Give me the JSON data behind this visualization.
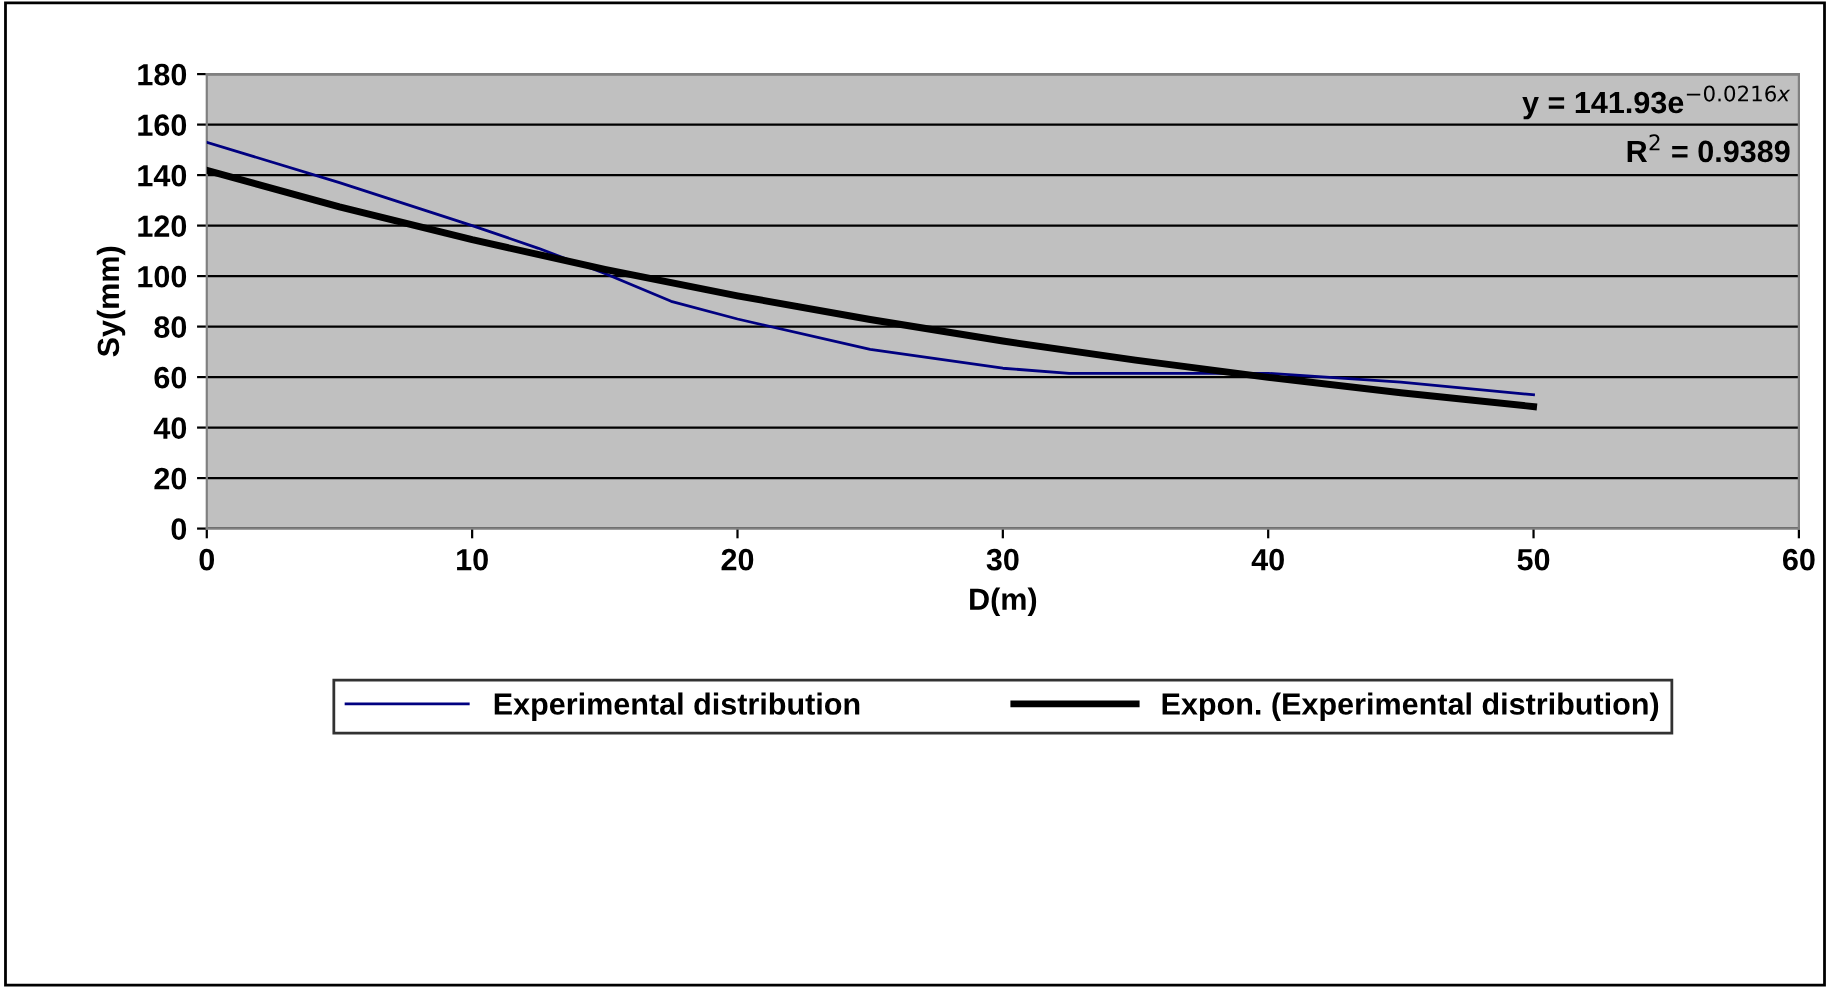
{
  "chart_data": {
    "type": "line",
    "xlabel": "D(m)",
    "ylabel": "Sy(mm)",
    "xlim": [
      0,
      60
    ],
    "xticks": [
      0,
      10,
      20,
      30,
      40,
      50,
      60
    ],
    "ylim": [
      0,
      180
    ],
    "yticks": [
      0,
      20,
      40,
      60,
      80,
      100,
      120,
      140,
      160,
      180
    ],
    "grid": "y",
    "legend": "bottom",
    "marker": "none",
    "annotations": [
      "y = 141.93e$^{−0.0216x}$",
      "R$^{2}$ = 0.9389"
    ],
    "series": [
      {
        "name": "Experimental distribution",
        "color": "#000080",
        "line_style": "solid",
        "x": [
          0,
          5,
          10,
          12.5,
          15,
          17.5,
          20,
          25,
          30,
          32.5,
          35,
          40,
          45,
          50
        ],
        "values": [
          153,
          137,
          120,
          111,
          101,
          90,
          83,
          71,
          63.5,
          61.5,
          61.5,
          61.5,
          58,
          53
        ]
      },
      {
        "name": "Expon. (Experimental distribution)",
        "color": "#000000",
        "line_style": "solid",
        "x": [
          0,
          5,
          10,
          15,
          20,
          25,
          30,
          35,
          40,
          45,
          50
        ],
        "values": [
          141.9,
          127.4,
          114.4,
          102.7,
          92.2,
          82.8,
          74.3,
          66.7,
          59.9,
          53.8,
          48.3
        ]
      }
    ]
  }
}
